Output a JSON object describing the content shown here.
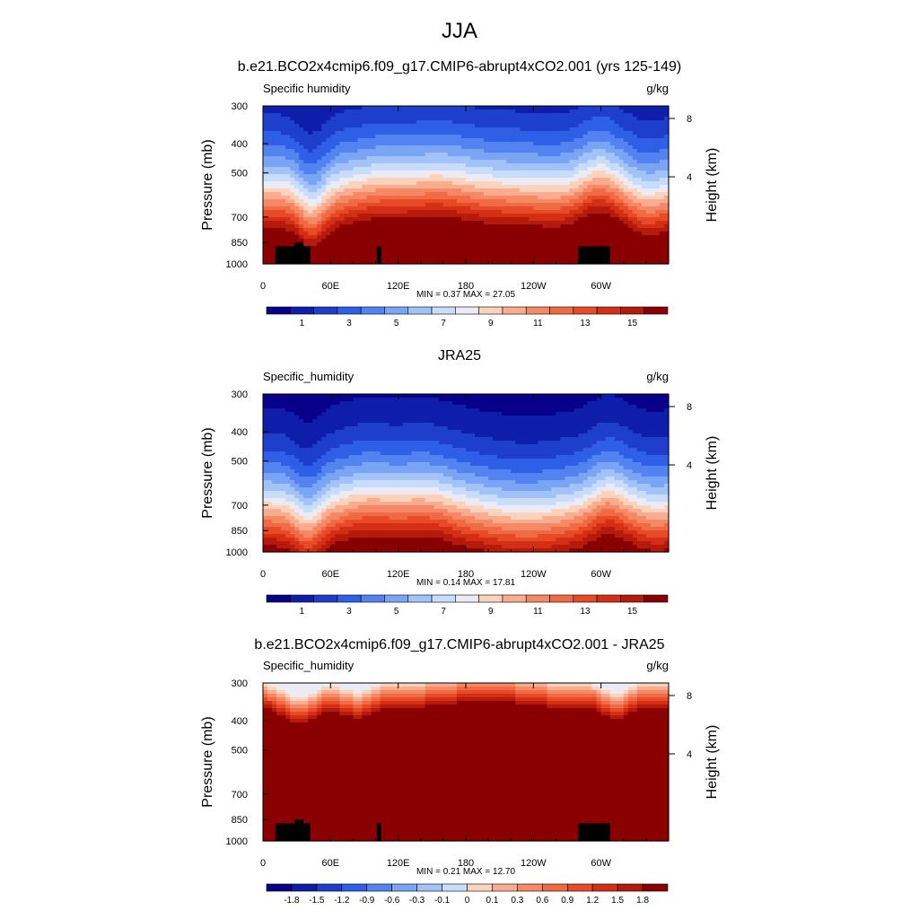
{
  "page_title": "JJA",
  "chart_data": [
    {
      "type": "heatmap",
      "title": "b.e21.BCO2x4cmip6.f09_g17.CMIP6-abrupt4xCO2.001 (yrs 125-149)",
      "left_label": "Specific humidity",
      "units": "g/kg",
      "ylabel": "Pressure (mb)",
      "ylabel_right": "Height (km)",
      "xticks": [
        "0",
        "60E",
        "120E",
        "180",
        "120W",
        "60W"
      ],
      "yticks": [
        "300",
        "400",
        "500",
        "700",
        "850",
        "1000"
      ],
      "yticks_right": [
        "8",
        "4"
      ],
      "ylim": [
        1000,
        300
      ],
      "xlim": [
        0,
        360
      ],
      "stats": "MIN =   0.37  MAX =  27.05",
      "colorbar_labels": [
        "1",
        "3",
        "5",
        "7",
        "9",
        "11",
        "13",
        "15"
      ],
      "colorbar_levels": 17,
      "field": "model",
      "terrain": [
        {
          "lon0": 11,
          "lon1": 42,
          "p": 875
        },
        {
          "lon0": 28,
          "lon1": 36,
          "p": 850
        },
        {
          "lon0": 101,
          "lon1": 105,
          "p": 875
        },
        {
          "lon0": 280,
          "lon1": 308,
          "p": 875
        }
      ]
    },
    {
      "type": "heatmap",
      "title": "JRA25",
      "left_label": "Specific_humidity",
      "units": "g/kg",
      "ylabel": "Pressure (mb)",
      "ylabel_right": "Height (km)",
      "xticks": [
        "0",
        "60E",
        "120E",
        "180",
        "120W",
        "60W"
      ],
      "yticks": [
        "300",
        "400",
        "500",
        "700",
        "850",
        "1000"
      ],
      "yticks_right": [
        "8",
        "4"
      ],
      "ylim": [
        1000,
        300
      ],
      "xlim": [
        0,
        360
      ],
      "stats": "MIN =   0.14  MAX =  17.81",
      "colorbar_labels": [
        "1",
        "3",
        "5",
        "7",
        "9",
        "11",
        "13",
        "15"
      ],
      "colorbar_levels": 17,
      "field": "obs",
      "terrain": []
    },
    {
      "type": "heatmap",
      "title": "b.e21.BCO2x4cmip6.f09_g17.CMIP6-abrupt4xCO2.001 - JRA25",
      "left_label": "Specific_humidity",
      "units": "g/kg",
      "ylabel": "Pressure (mb)",
      "ylabel_right": "Height (km)",
      "xticks": [
        "0",
        "60E",
        "120E",
        "180",
        "120W",
        "60W"
      ],
      "yticks": [
        "300",
        "400",
        "500",
        "700",
        "850",
        "1000"
      ],
      "yticks_right": [
        "8",
        "4"
      ],
      "ylim": [
        1000,
        300
      ],
      "xlim": [
        0,
        360
      ],
      "stats": "MIN =   0.21  MAX =  12.70",
      "colorbar_labels": [
        "-1.8",
        "-1.5",
        "-1.2",
        "-0.9",
        "-0.6",
        "-0.3",
        "-0.1",
        "0",
        "0.1",
        "0.3",
        "0.6",
        "0.9",
        "1.2",
        "1.5",
        "1.8"
      ],
      "colorbar_levels": 16,
      "field": "diff",
      "terrain": [
        {
          "lon0": 11,
          "lon1": 42,
          "p": 875
        },
        {
          "lon0": 28,
          "lon1": 36,
          "p": 850
        },
        {
          "lon0": 101,
          "lon1": 105,
          "p": 875
        },
        {
          "lon0": 280,
          "lon1": 308,
          "p": 875
        }
      ]
    }
  ],
  "colors": {
    "colormap": [
      "#08008a",
      "#0f1eaa",
      "#1e3fcc",
      "#2f5fe6",
      "#5283f0",
      "#7aa5f5",
      "#a1c3f8",
      "#c8dcfb",
      "#ecebf4",
      "#fbd2bc",
      "#f9ad8e",
      "#f58966",
      "#f06a44",
      "#e84a27",
      "#d42f14",
      "#b51a0a",
      "#8a0000"
    ],
    "terrain": "#000000"
  }
}
